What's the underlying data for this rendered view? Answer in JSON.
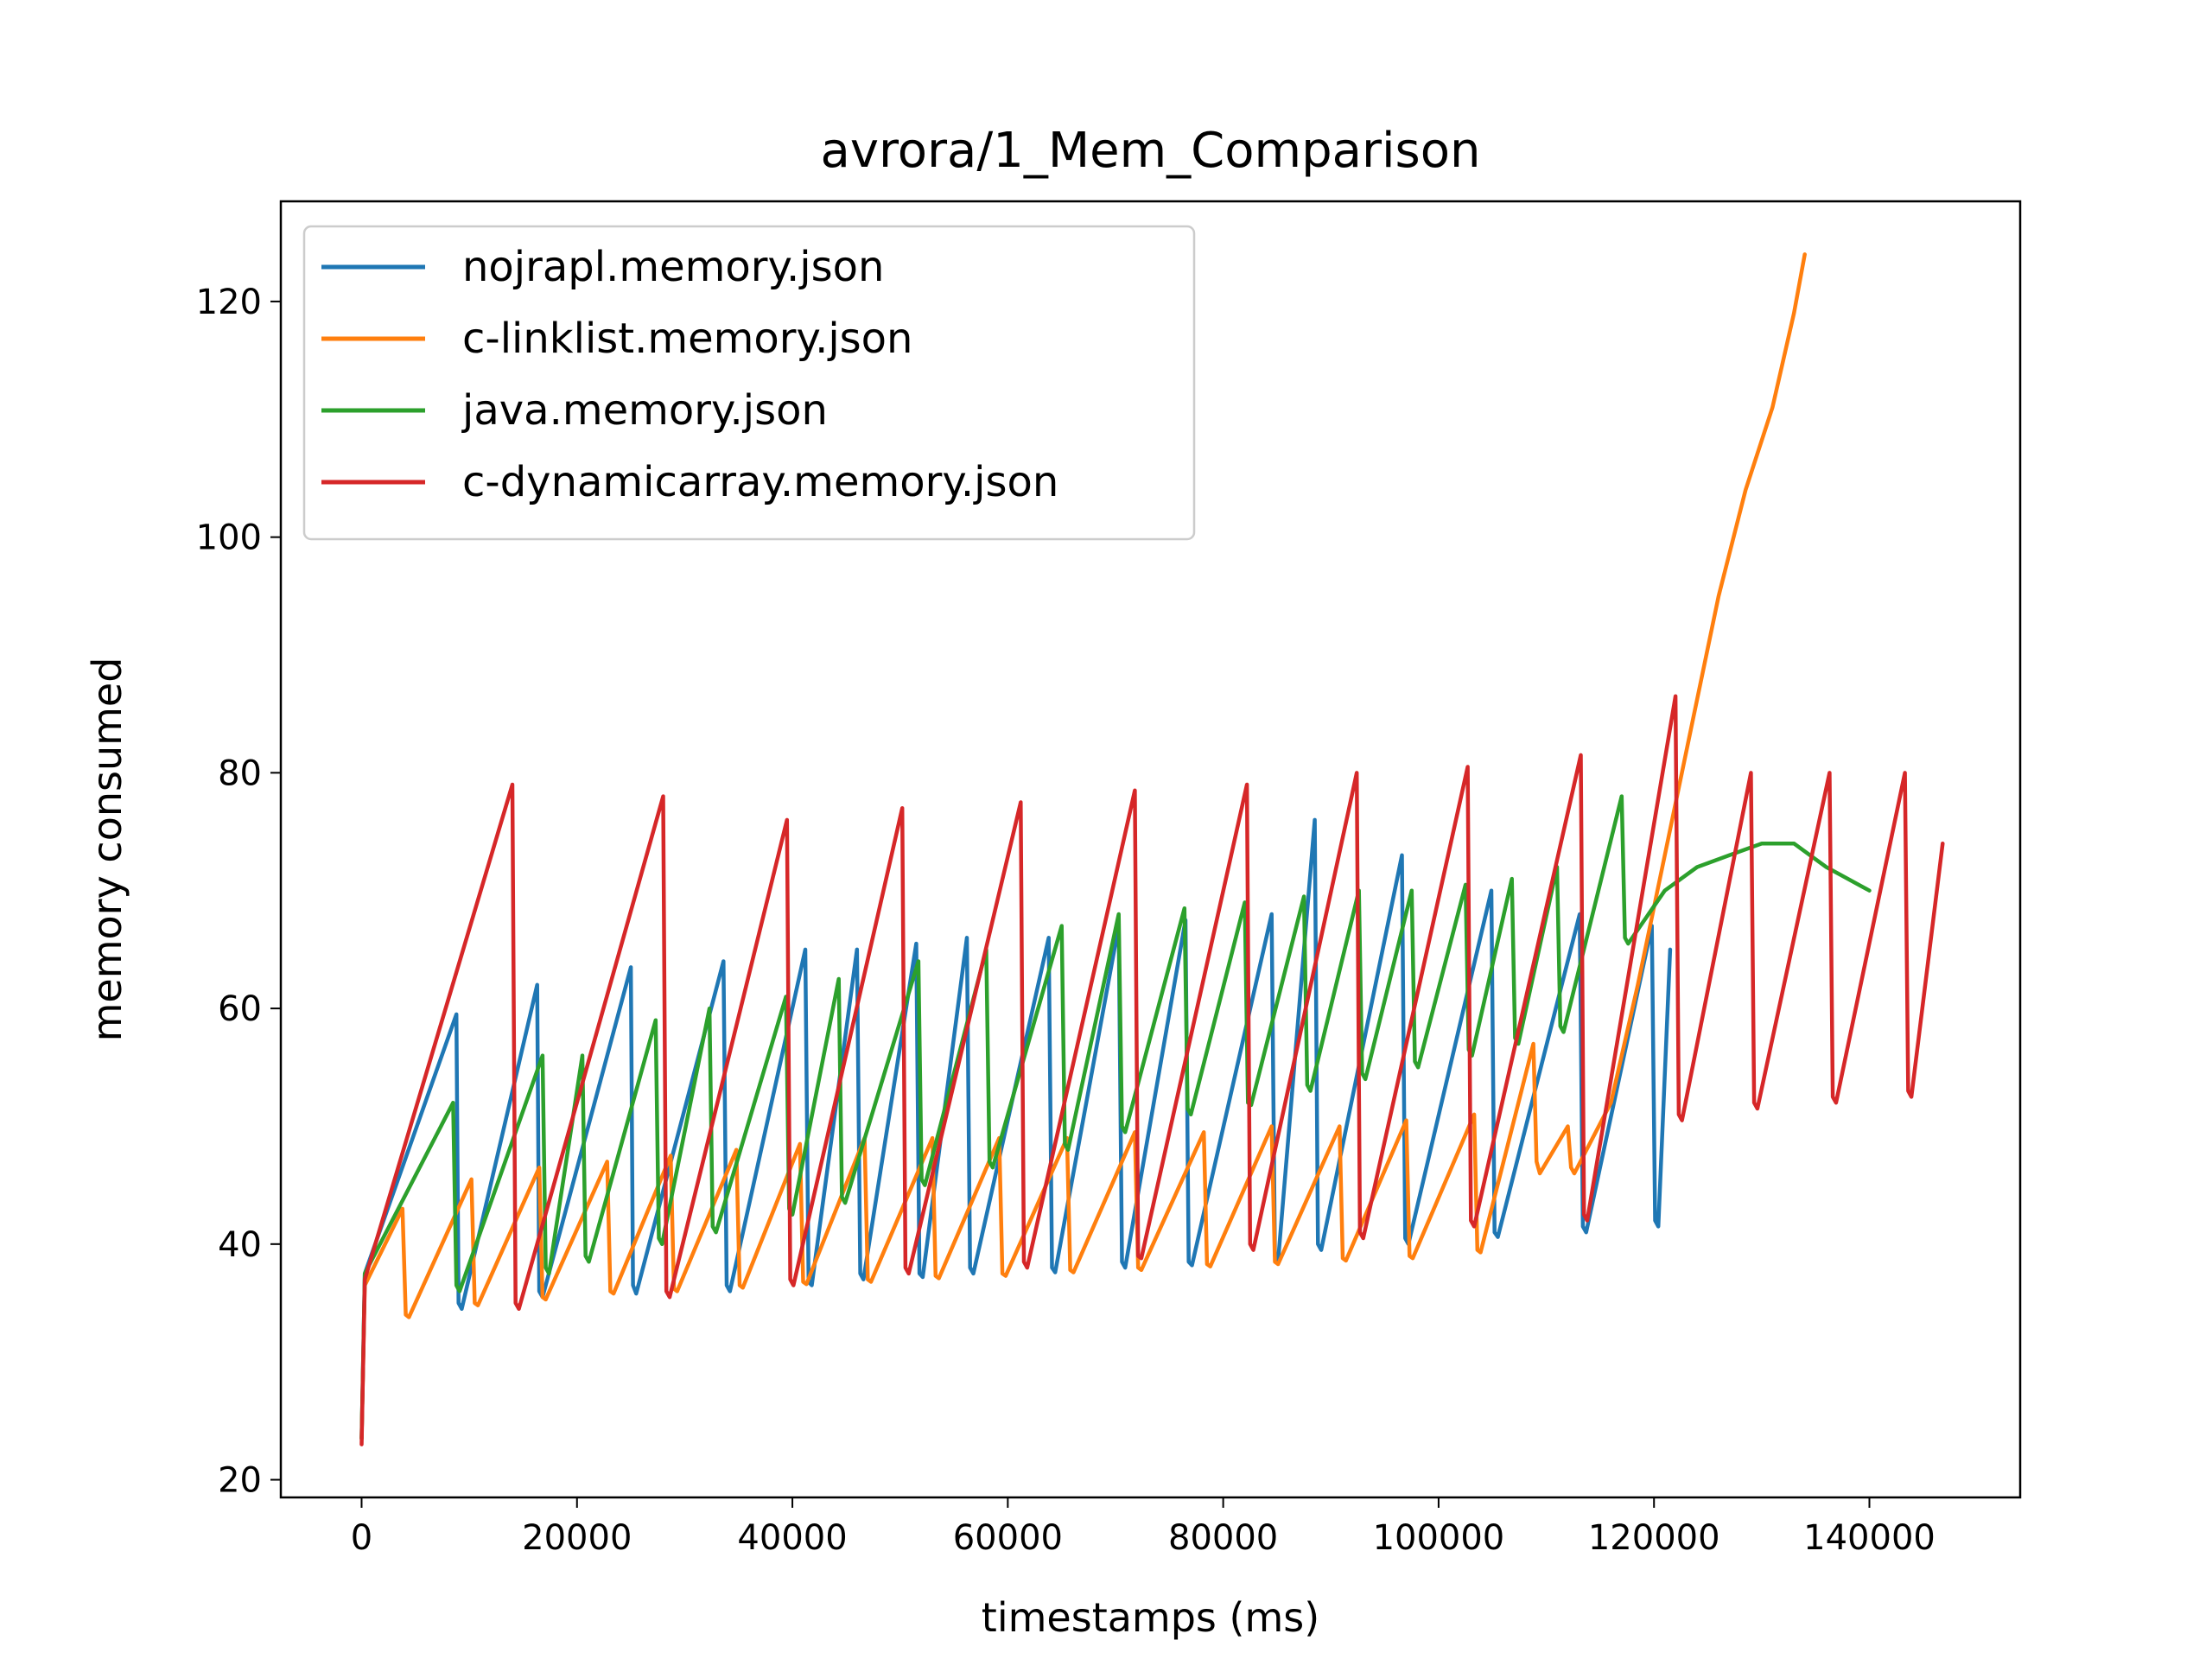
{
  "chart_data": {
    "type": "line",
    "title": "avrora/1_Mem_Comparison",
    "xlabel": "timestamps (ms)",
    "ylabel": "memory consumed",
    "xlim": [
      -7500,
      154000
    ],
    "ylim": [
      18.5,
      128.5
    ],
    "xticks": [
      0,
      20000,
      40000,
      60000,
      80000,
      100000,
      120000,
      140000
    ],
    "xtick_labels": [
      "0",
      "20000",
      "40000",
      "60000",
      "80000",
      "100000",
      "120000",
      "140000"
    ],
    "yticks": [
      20,
      40,
      60,
      80,
      100,
      120
    ],
    "ytick_labels": [
      "20",
      "40",
      "60",
      "80",
      "100",
      "120"
    ],
    "grid": false,
    "legend_position": "top-left",
    "series": [
      {
        "name": "nojrapl.memory.json",
        "color": "#1f77b4",
        "x": [
          0,
          300,
          8800,
          9000,
          9300,
          16300,
          16500,
          16800,
          25000,
          25200,
          25500,
          33600,
          33900,
          34200,
          41200,
          41500,
          41800,
          46000,
          46300,
          46600,
          51500,
          51800,
          52100,
          56200,
          56500,
          56800,
          63800,
          64100,
          64400,
          70300,
          70600,
          70900,
          76500,
          76800,
          77100,
          84500,
          84800,
          85100,
          88500,
          88800,
          89100,
          96600,
          96900,
          97200,
          104900,
          105200,
          105500,
          113100,
          113400,
          113700,
          119800,
          120100,
          120400,
          121500
        ],
        "y": [
          23.5,
          37.5,
          59.5,
          35.0,
          34.5,
          62.0,
          36.0,
          35.5,
          63.5,
          36.5,
          35.8,
          64.0,
          36.5,
          36.0,
          65.0,
          36.8,
          36.5,
          65.0,
          37.5,
          37.0,
          65.5,
          37.5,
          37.2,
          66.0,
          38.0,
          37.5,
          66.0,
          38.0,
          37.6,
          67.0,
          38.5,
          38.0,
          67.5,
          38.5,
          38.2,
          68.0,
          39.0,
          38.6,
          76.0,
          40.0,
          39.5,
          73.0,
          40.5,
          40.0,
          70.0,
          41.0,
          40.6,
          68.0,
          41.5,
          41.0,
          67.0,
          42.0,
          41.5,
          65.0
        ]
      },
      {
        "name": "c-linklist.memory.json",
        "color": "#ff7f0e",
        "x": [
          0,
          300,
          3800,
          4100,
          4400,
          10200,
          10500,
          10800,
          16500,
          16800,
          17100,
          22800,
          23100,
          23400,
          28700,
          29000,
          29300,
          34800,
          35100,
          35400,
          40700,
          41000,
          41300,
          46700,
          47000,
          47300,
          53000,
          53300,
          53600,
          59200,
          59500,
          59800,
          65500,
          65800,
          66100,
          71800,
          72100,
          72400,
          78200,
          78500,
          78800,
          84500,
          84800,
          85100,
          90800,
          91100,
          91400,
          97000,
          97300,
          97600,
          103300,
          103600,
          103900,
          108800,
          109100,
          109400,
          112000,
          112300,
          112600,
          116000,
          118500,
          121000,
          123500,
          126000,
          128500,
          131000,
          133000,
          134000
        ],
        "y": [
          23.5,
          36.5,
          43.0,
          34.0,
          33.8,
          45.5,
          35.0,
          34.8,
          46.5,
          35.5,
          35.3,
          47.0,
          36.0,
          35.8,
          47.5,
          36.2,
          36.0,
          48.0,
          36.5,
          36.3,
          48.5,
          36.8,
          36.6,
          49.0,
          37.0,
          36.8,
          49.0,
          37.3,
          37.1,
          49.0,
          37.5,
          37.3,
          49.0,
          37.8,
          37.6,
          49.5,
          38.0,
          37.8,
          49.5,
          38.3,
          38.1,
          50.0,
          38.5,
          38.3,
          50.0,
          38.8,
          38.6,
          50.5,
          39.0,
          38.8,
          51.0,
          39.5,
          39.3,
          57.0,
          47.0,
          46.0,
          50.0,
          46.5,
          46.0,
          52.0,
          62.0,
          73.0,
          84.0,
          95.0,
          104.0,
          111.0,
          119.0,
          124.0
        ]
      },
      {
        "name": "java.memory.json",
        "color": "#2ca02c",
        "x": [
          0,
          300,
          8500,
          8800,
          9100,
          16800,
          17100,
          17400,
          20500,
          20800,
          21100,
          27300,
          27600,
          27900,
          32300,
          32600,
          32900,
          39400,
          39700,
          40000,
          44300,
          44600,
          44900,
          51700,
          52000,
          52300,
          58000,
          58300,
          58600,
          65000,
          65300,
          65600,
          70300,
          70600,
          70900,
          76400,
          76700,
          77000,
          82000,
          82300,
          82600,
          87500,
          87800,
          88100,
          92600,
          92900,
          93200,
          97500,
          97800,
          98100,
          102500,
          102800,
          103100,
          106800,
          107100,
          107400,
          111000,
          111300,
          111600,
          117000,
          117300,
          117600,
          121000,
          124000,
          127000,
          130000,
          133000,
          136000,
          140000
        ],
        "y": [
          23.5,
          37.5,
          52.0,
          36.5,
          36.0,
          56.0,
          38.0,
          37.5,
          56.0,
          39.0,
          38.5,
          59.0,
          40.5,
          40.0,
          60.0,
          41.5,
          41.0,
          61.0,
          43.0,
          42.5,
          62.5,
          44.0,
          43.5,
          64.0,
          45.5,
          45.0,
          65.0,
          47.0,
          46.5,
          67.0,
          48.5,
          48.0,
          68.0,
          50.0,
          49.5,
          68.5,
          51.5,
          51.0,
          69.0,
          52.0,
          51.8,
          69.5,
          53.5,
          53.0,
          70.0,
          54.5,
          54.0,
          70.0,
          55.5,
          55.0,
          70.5,
          56.5,
          56.0,
          71.0,
          57.5,
          57.0,
          72.0,
          58.5,
          58.0,
          78.0,
          66.0,
          65.5,
          70.0,
          72.0,
          73.0,
          74.0,
          74.0,
          72.0,
          70.0
        ]
      },
      {
        "name": "c-dynamicarray.memory.json",
        "color": "#d62728",
        "x": [
          0,
          300,
          14000,
          14300,
          14600,
          28000,
          28300,
          28600,
          39500,
          39800,
          40100,
          50200,
          50500,
          50800,
          61200,
          61500,
          61800,
          71800,
          72100,
          72400,
          82200,
          82500,
          82800,
          92400,
          92700,
          93000,
          102700,
          103000,
          103300,
          113200,
          113500,
          113800,
          122000,
          122300,
          122600,
          129000,
          129300,
          129600,
          136300,
          136600,
          136900,
          143300,
          143600,
          143900,
          146800
        ],
        "y": [
          23.0,
          37.0,
          79.0,
          35.0,
          34.5,
          78.0,
          36.0,
          35.5,
          76.0,
          37.0,
          36.5,
          77.0,
          38.0,
          37.5,
          77.5,
          38.5,
          38.0,
          78.5,
          39.0,
          38.8,
          79.0,
          40.0,
          39.5,
          80.0,
          41.0,
          40.5,
          80.5,
          42.0,
          41.5,
          81.5,
          42.5,
          42.0,
          86.5,
          51.0,
          50.5,
          80.0,
          52.0,
          51.5,
          80.0,
          52.5,
          52.0,
          80.0,
          53.0,
          52.5,
          74.0
        ]
      }
    ]
  }
}
